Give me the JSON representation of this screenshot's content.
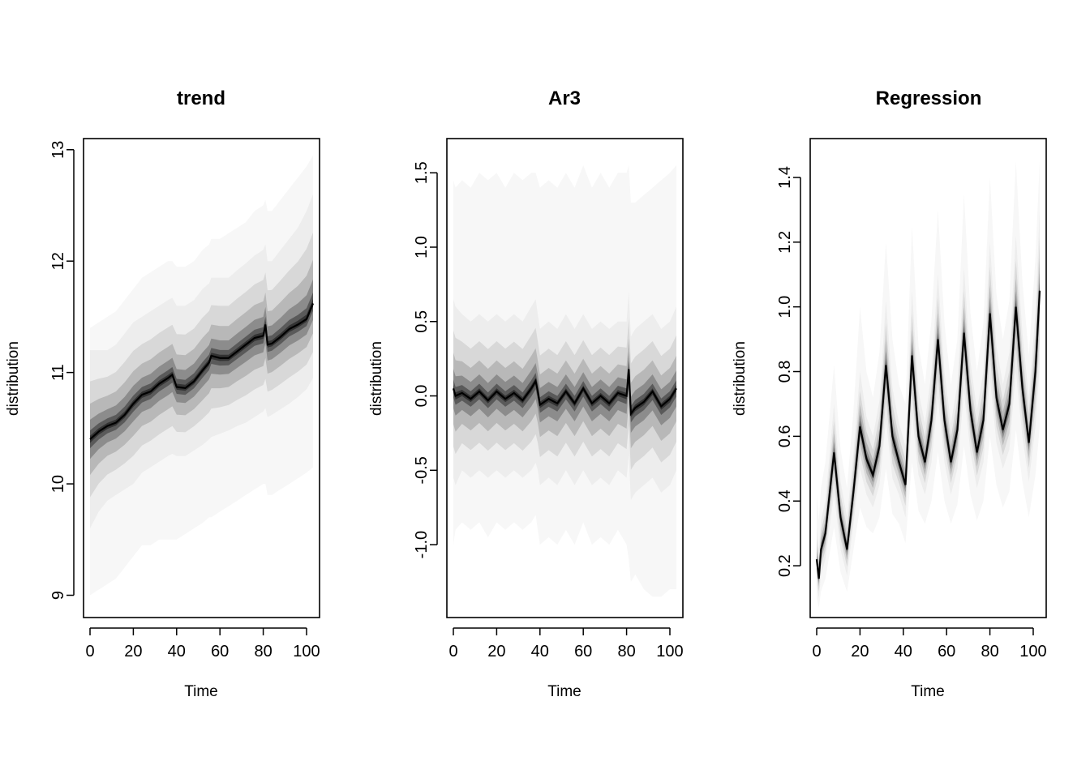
{
  "chart_data": [
    {
      "type": "area",
      "title": "trend",
      "xlabel": "Time",
      "ylabel": "distribution",
      "xlim": [
        -3,
        106
      ],
      "ylim": [
        8.8,
        13.1
      ],
      "xticks": [
        "0",
        "20",
        "40",
        "60",
        "80",
        "100"
      ],
      "yticks": [
        "9",
        "10",
        "11",
        "12",
        "13"
      ],
      "grid": false,
      "legend": "none",
      "x": [
        0,
        4,
        8,
        12,
        16,
        20,
        24,
        28,
        32,
        36,
        38,
        40,
        44,
        48,
        52,
        55,
        56,
        60,
        64,
        68,
        72,
        76,
        80,
        81,
        82,
        84,
        88,
        92,
        96,
        100,
        103
      ],
      "series": [
        {
          "median": [
            10.4,
            10.47,
            10.52,
            10.55,
            10.62,
            10.72,
            10.8,
            10.83,
            10.9,
            10.95,
            10.98,
            10.87,
            10.86,
            10.92,
            11.02,
            11.09,
            11.15,
            11.13,
            11.13,
            11.19,
            11.25,
            11.31,
            11.33,
            11.43,
            11.25,
            11.26,
            11.32,
            11.39,
            11.43,
            11.48,
            11.62
          ],
          "lower": [
            9.6,
            9.75,
            9.85,
            9.9,
            9.95,
            10.0,
            10.1,
            10.15,
            10.2,
            10.25,
            10.27,
            10.25,
            10.25,
            10.3,
            10.35,
            10.4,
            10.42,
            10.45,
            10.48,
            10.52,
            10.55,
            10.6,
            10.65,
            10.68,
            10.6,
            10.62,
            10.67,
            10.72,
            10.78,
            10.85,
            10.95
          ],
          "upper": [
            11.2,
            11.2,
            11.2,
            11.25,
            11.35,
            11.45,
            11.5,
            11.55,
            11.6,
            11.65,
            11.67,
            11.6,
            11.6,
            11.65,
            11.75,
            11.8,
            11.85,
            11.85,
            11.85,
            11.92,
            11.98,
            12.05,
            12.1,
            12.15,
            12.0,
            12.0,
            12.1,
            12.2,
            12.3,
            12.45,
            12.6
          ],
          "lower_outer": [
            9.0,
            9.05,
            9.1,
            9.15,
            9.25,
            9.35,
            9.45,
            9.45,
            9.5,
            9.5,
            9.5,
            9.5,
            9.55,
            9.6,
            9.65,
            9.7,
            9.7,
            9.75,
            9.8,
            9.85,
            9.9,
            9.95,
            10.0,
            10.0,
            9.9,
            9.9,
            9.95,
            10.0,
            10.05,
            10.1,
            10.15
          ],
          "upper_outer": [
            11.4,
            11.45,
            11.5,
            11.55,
            11.65,
            11.75,
            11.85,
            11.9,
            11.95,
            12.0,
            12.0,
            11.95,
            11.95,
            12.0,
            12.1,
            12.15,
            12.2,
            12.2,
            12.25,
            12.3,
            12.35,
            12.45,
            12.5,
            12.55,
            12.45,
            12.45,
            12.55,
            12.65,
            12.75,
            12.85,
            12.95
          ]
        }
      ]
    },
    {
      "type": "area",
      "title": "Ar3",
      "xlabel": "Time",
      "ylabel": "distribution",
      "xlim": [
        -3,
        106
      ],
      "ylim": [
        -1.49,
        1.73
      ],
      "xticks": [
        "0",
        "20",
        "40",
        "60",
        "80",
        "100"
      ],
      "yticks": [
        "-1.0",
        "-0.5",
        "0.0",
        "0.5",
        "1.0",
        "1.5"
      ],
      "grid": false,
      "legend": "none",
      "x": [
        0,
        1,
        4,
        8,
        12,
        16,
        20,
        24,
        28,
        32,
        36,
        38,
        39,
        40,
        44,
        48,
        52,
        56,
        60,
        64,
        68,
        72,
        76,
        80,
        81,
        82,
        84,
        88,
        92,
        96,
        100,
        103
      ],
      "series": [
        {
          "median": [
            0.05,
            0.0,
            0.02,
            -0.02,
            0.03,
            -0.03,
            0.03,
            -0.02,
            0.02,
            -0.03,
            0.05,
            0.1,
            0.03,
            -0.06,
            -0.02,
            -0.05,
            0.03,
            -0.05,
            0.05,
            -0.05,
            0.0,
            -0.05,
            0.02,
            0.0,
            0.18,
            -0.12,
            -0.08,
            -0.04,
            0.03,
            -0.07,
            -0.02,
            0.05
          ],
          "lower": [
            -0.55,
            -0.6,
            -0.5,
            -0.55,
            -0.5,
            -0.55,
            -0.5,
            -0.55,
            -0.5,
            -0.55,
            -0.5,
            -0.45,
            -0.5,
            -0.6,
            -0.55,
            -0.6,
            -0.5,
            -0.6,
            -0.5,
            -0.6,
            -0.55,
            -0.6,
            -0.5,
            -0.55,
            -0.4,
            -0.7,
            -0.65,
            -0.6,
            -0.55,
            -0.65,
            -0.6,
            -0.5
          ],
          "upper": [
            0.65,
            0.6,
            0.55,
            0.5,
            0.55,
            0.5,
            0.55,
            0.5,
            0.55,
            0.5,
            0.6,
            0.65,
            0.55,
            0.45,
            0.5,
            0.45,
            0.55,
            0.45,
            0.55,
            0.45,
            0.5,
            0.45,
            0.5,
            0.5,
            0.7,
            0.4,
            0.45,
            0.5,
            0.55,
            0.45,
            0.5,
            0.6
          ],
          "lower_outer": [
            -1.0,
            -0.9,
            -0.85,
            -0.9,
            -0.85,
            -0.95,
            -0.85,
            -0.9,
            -0.85,
            -0.9,
            -0.85,
            -0.8,
            -0.9,
            -1.0,
            -0.95,
            -1.0,
            -0.9,
            -1.0,
            -0.85,
            -1.0,
            -0.95,
            -1.0,
            -0.9,
            -1.0,
            -1.1,
            -1.25,
            -1.2,
            -1.3,
            -1.35,
            -1.35,
            -1.3,
            -1.3
          ],
          "upper_outer": [
            1.45,
            1.4,
            1.45,
            1.4,
            1.5,
            1.45,
            1.5,
            1.4,
            1.5,
            1.45,
            1.5,
            1.5,
            1.45,
            1.4,
            1.45,
            1.4,
            1.5,
            1.4,
            1.55,
            1.4,
            1.5,
            1.4,
            1.5,
            1.5,
            1.55,
            1.3,
            1.3,
            1.35,
            1.4,
            1.45,
            1.5,
            1.55
          ]
        }
      ]
    },
    {
      "type": "area",
      "title": "Regression",
      "xlabel": "Time",
      "ylabel": "distribution",
      "xlim": [
        -3,
        106
      ],
      "ylim": [
        0.04,
        1.52
      ],
      "xticks": [
        "0",
        "20",
        "40",
        "60",
        "80",
        "100"
      ],
      "yticks": [
        "0.2",
        "0.4",
        "0.6",
        "0.8",
        "1.0",
        "1.2",
        "1.4"
      ],
      "grid": false,
      "legend": "none",
      "x": [
        0,
        1,
        2,
        4,
        8,
        11,
        14,
        17,
        20,
        23,
        26,
        29,
        32,
        35,
        38,
        41,
        44,
        47,
        50,
        53,
        56,
        59,
        62,
        65,
        68,
        71,
        74,
        77,
        80,
        83,
        86,
        89,
        92,
        95,
        98,
        101,
        103
      ],
      "series": [
        {
          "median": [
            0.22,
            0.16,
            0.25,
            0.3,
            0.55,
            0.35,
            0.25,
            0.43,
            0.63,
            0.53,
            0.48,
            0.57,
            0.82,
            0.6,
            0.52,
            0.45,
            0.85,
            0.6,
            0.52,
            0.65,
            0.9,
            0.65,
            0.52,
            0.62,
            0.92,
            0.68,
            0.55,
            0.65,
            0.98,
            0.72,
            0.62,
            0.7,
            1.0,
            0.75,
            0.58,
            0.8,
            1.05
          ],
          "lower": [
            0.14,
            0.1,
            0.17,
            0.22,
            0.42,
            0.25,
            0.17,
            0.33,
            0.5,
            0.42,
            0.38,
            0.45,
            0.65,
            0.47,
            0.42,
            0.35,
            0.67,
            0.48,
            0.42,
            0.52,
            0.72,
            0.52,
            0.42,
            0.5,
            0.74,
            0.55,
            0.44,
            0.52,
            0.78,
            0.58,
            0.5,
            0.56,
            0.8,
            0.6,
            0.46,
            0.63,
            0.82
          ],
          "upper": [
            0.32,
            0.25,
            0.34,
            0.4,
            0.7,
            0.46,
            0.35,
            0.55,
            0.8,
            0.66,
            0.6,
            0.71,
            1.02,
            0.75,
            0.64,
            0.57,
            1.05,
            0.74,
            0.64,
            0.8,
            1.1,
            0.8,
            0.64,
            0.76,
            1.12,
            0.83,
            0.68,
            0.8,
            1.2,
            0.88,
            0.76,
            0.86,
            1.22,
            0.92,
            0.72,
            0.98,
            1.3
          ],
          "lower_outer": [
            0.1,
            0.07,
            0.12,
            0.16,
            0.32,
            0.18,
            0.12,
            0.25,
            0.38,
            0.32,
            0.3,
            0.35,
            0.5,
            0.36,
            0.33,
            0.27,
            0.52,
            0.37,
            0.33,
            0.4,
            0.55,
            0.4,
            0.33,
            0.39,
            0.57,
            0.42,
            0.34,
            0.4,
            0.6,
            0.45,
            0.38,
            0.43,
            0.62,
            0.46,
            0.35,
            0.48,
            0.63
          ],
          "upper_outer": [
            0.42,
            0.34,
            0.44,
            0.52,
            0.82,
            0.56,
            0.44,
            0.68,
            1.0,
            0.8,
            0.72,
            0.86,
            1.2,
            0.9,
            0.76,
            0.7,
            1.25,
            0.88,
            0.76,
            0.96,
            1.3,
            0.95,
            0.76,
            0.9,
            1.35,
            0.98,
            0.8,
            0.95,
            1.4,
            1.04,
            0.9,
            1.02,
            1.45,
            1.08,
            0.85,
            1.15,
            1.45
          ]
        }
      ]
    }
  ]
}
